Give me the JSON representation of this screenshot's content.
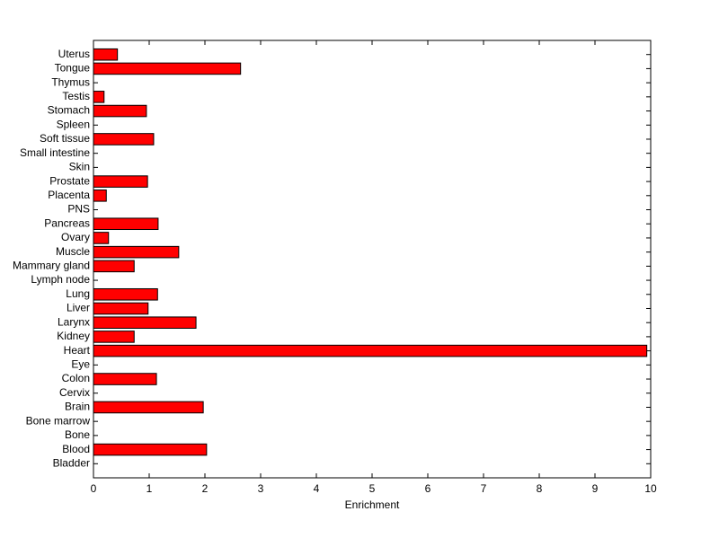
{
  "chart_data": {
    "type": "barh",
    "xlabel": "Enrichment",
    "categories": [
      "Bladder",
      "Blood",
      "Bone",
      "Bone marrow",
      "Brain",
      "Cervix",
      "Colon",
      "Eye",
      "Heart",
      "Kidney",
      "Larynx",
      "Liver",
      "Lung",
      "Lymph node",
      "Mammary gland",
      "Muscle",
      "Ovary",
      "Pancreas",
      "PNS",
      "Placenta",
      "Prostate",
      "Skin",
      "Small intestine",
      "Soft tissue",
      "Spleen",
      "Stomach",
      "Testis",
      "Thymus",
      "Tongue",
      "Uterus"
    ],
    "values": [
      0,
      2.03,
      0,
      0,
      1.97,
      0,
      1.13,
      0,
      9.93,
      0.73,
      1.84,
      0.98,
      1.15,
      0,
      0.73,
      1.53,
      0.27,
      1.16,
      0,
      0.23,
      0.97,
      0,
      0,
      1.08,
      0,
      0.95,
      0.19,
      0,
      2.64,
      0.43
    ],
    "color": "#ff0000",
    "xlim": [
      0,
      10
    ],
    "xticks": [
      0,
      1,
      2,
      3,
      4,
      5,
      6,
      7,
      8,
      9,
      10
    ]
  }
}
